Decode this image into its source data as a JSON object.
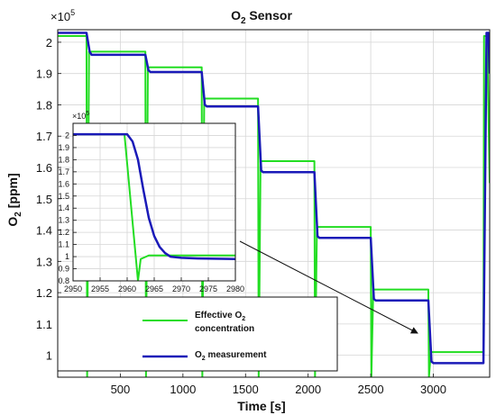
{
  "chart_data": [
    {
      "type": "line",
      "title": "O2 Sensor",
      "title_main": "O",
      "title_sub": "2",
      "title_rest": " Sensor",
      "xlabel": "Time [s]",
      "ylabel_main": "O",
      "ylabel_sub": "2",
      "ylabel_rest": " [ppm]",
      "y_exponent_label": "×10",
      "y_exponent": "5",
      "xlim": [
        0,
        3450
      ],
      "ylim": [
        0.93,
        2.04
      ],
      "xticks": [
        500,
        1000,
        1500,
        2000,
        2500,
        3000
      ],
      "yticks": [
        1,
        1.1,
        1.2,
        1.3,
        1.4,
        1.5,
        1.6,
        1.7,
        1.8,
        1.9,
        2
      ],
      "ytick_labels": [
        "1",
        "1.1",
        "1.2",
        "1.3",
        "1.4",
        "1.5",
        "1.6",
        "1.7",
        "1.8",
        "1.9",
        "2"
      ],
      "grid": true,
      "colors": {
        "effective": "#22dd22",
        "measurement": "#1a1ab8"
      },
      "series": [
        {
          "name": "Effective O2 concentration",
          "color": "#22dd22",
          "x": [
            0,
            230,
            235,
            250,
            700,
            705,
            720,
            1150,
            1155,
            1170,
            1600,
            1605,
            1620,
            2050,
            2055,
            2070,
            2500,
            2505,
            2520,
            2960,
            2965,
            2980,
            3400,
            3405,
            3430,
            3450
          ],
          "y": [
            2.02,
            2.02,
            0.93,
            1.97,
            1.97,
            0.93,
            1.92,
            1.92,
            0.93,
            1.82,
            1.82,
            0.93,
            1.62,
            1.62,
            0.93,
            1.41,
            1.41,
            0.93,
            1.21,
            1.21,
            0.93,
            1.01,
            1.01,
            2.02,
            2.02,
            1.55
          ]
        },
        {
          "name": "O2 measurement",
          "color": "#1a1ab8",
          "x": [
            0,
            230,
            255,
            270,
            700,
            725,
            740,
            1150,
            1175,
            1190,
            1600,
            1625,
            1640,
            2050,
            2075,
            2090,
            2500,
            2525,
            2540,
            2960,
            2985,
            3000,
            3400,
            3425,
            3440,
            3450
          ],
          "y": [
            2.03,
            2.03,
            1.97,
            1.96,
            1.96,
            1.91,
            1.905,
            1.905,
            1.8,
            1.795,
            1.795,
            1.59,
            1.585,
            1.585,
            1.38,
            1.375,
            1.375,
            1.18,
            1.175,
            1.175,
            0.98,
            0.975,
            0.975,
            2.03,
            2.03,
            1.9
          ]
        }
      ],
      "legend": {
        "position": "bottom-left",
        "effective_line1_main": "Effective O",
        "effective_line1_sub": "2",
        "effective_line2": "concentration",
        "measurement_main": "O",
        "measurement_sub": "2",
        "measurement_rest": " measurement"
      }
    },
    {
      "type": "line",
      "role": "inset",
      "xlim": [
        2950,
        2980
      ],
      "ylim": [
        0.8,
        2.1
      ],
      "xticks": [
        2950,
        2955,
        2960,
        2965,
        2970,
        2975,
        2980
      ],
      "yticks": [
        0.8,
        0.9,
        1,
        1.1,
        1.2,
        1.3,
        1.4,
        1.5,
        1.6,
        1.7,
        1.8,
        1.9,
        2
      ],
      "ytick_labels": [
        "0.8",
        "0.9",
        "1",
        "1.1",
        "1.2",
        "1.3",
        "1.4",
        "1.5",
        "1.6",
        "1.7",
        "1.8",
        "1.9",
        "2"
      ],
      "y_exponent_label": "×10",
      "y_exponent": "5",
      "grid": true,
      "series": [
        {
          "name": "Effective O2 concentration",
          "color": "#22dd22",
          "x": [
            2950,
            2959.5,
            2962,
            2962.5,
            2964,
            2980
          ],
          "y": [
            2.01,
            2.01,
            0.8,
            0.98,
            1.01,
            1.01
          ]
        },
        {
          "name": "O2 measurement",
          "color": "#1a1ab8",
          "x": [
            2950,
            2960,
            2961,
            2962,
            2963,
            2964,
            2965,
            2966,
            2967,
            2968,
            2970,
            2973,
            2980
          ],
          "y": [
            2.01,
            2.01,
            1.95,
            1.8,
            1.55,
            1.32,
            1.17,
            1.08,
            1.03,
            1.0,
            0.99,
            0.985,
            0.98
          ]
        }
      ]
    }
  ]
}
